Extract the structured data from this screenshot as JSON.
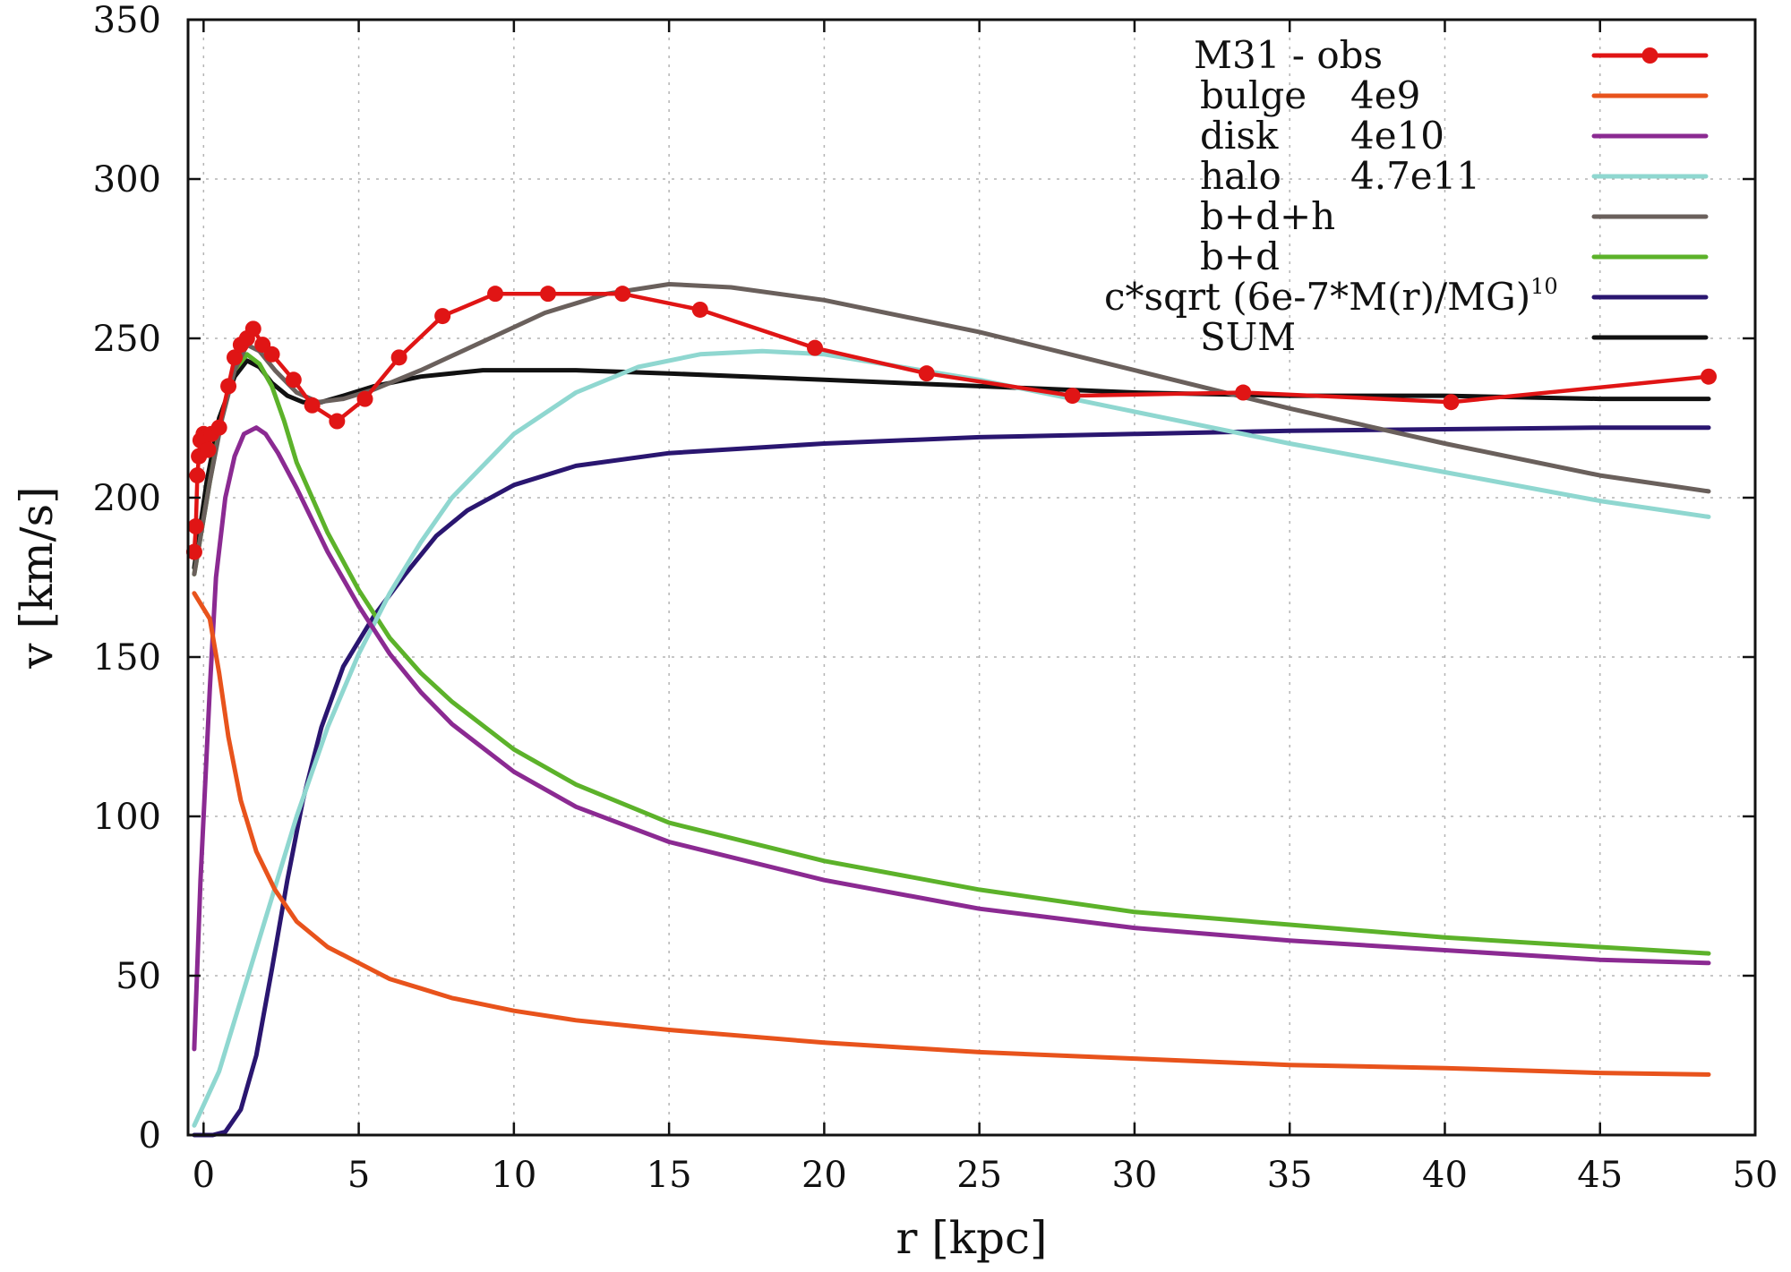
{
  "chart_data": {
    "type": "line",
    "title": "",
    "xlabel": "r [kpc]",
    "ylabel": "v [km/s]",
    "xlim": [
      -0.5,
      50
    ],
    "ylim": [
      0,
      350
    ],
    "grid": true,
    "legend_position": "top-right",
    "x_ticks": [
      0,
      5,
      10,
      15,
      20,
      25,
      30,
      35,
      40,
      45,
      50
    ],
    "x_tick_labels": [
      "0",
      "5",
      "10",
      "15",
      "20",
      "25",
      "30",
      "35",
      "40",
      "45",
      "50"
    ],
    "y_ticks": [
      0,
      50,
      100,
      150,
      200,
      250,
      300,
      350
    ],
    "y_tick_labels": [
      "0",
      "50",
      "100",
      "150",
      "200",
      "250",
      "300",
      "350"
    ],
    "series": [
      {
        "name": "M31 -   obs",
        "legend_left": "M31 -   obs",
        "legend_right": "",
        "color": "#e01515",
        "markers": true,
        "x": [
          -0.3,
          -0.25,
          -0.2,
          -0.15,
          -0.1,
          0.0,
          0.05,
          0.15,
          0.25,
          0.5,
          0.8,
          1.0,
          1.2,
          1.4,
          1.6,
          1.9,
          2.2,
          2.9,
          3.5,
          4.3,
          5.2,
          6.3,
          7.7,
          9.4,
          11.1,
          13.5,
          16.0,
          19.7,
          23.3,
          28.0,
          33.5,
          40.2,
          48.5
        ],
        "y": [
          183,
          191,
          207,
          213,
          218,
          220,
          219,
          215,
          220,
          222,
          235,
          244,
          248,
          250,
          253,
          248,
          245,
          237,
          229,
          224,
          231,
          244,
          257,
          264,
          264,
          264,
          259,
          247,
          239,
          232,
          233,
          230,
          238
        ]
      },
      {
        "name": "bulge 4e9",
        "legend_left": "bulge",
        "legend_right": "4e9",
        "color": "#e8531c",
        "markers": false,
        "x": [
          -0.3,
          0.2,
          0.5,
          0.8,
          1.2,
          1.7,
          2.3,
          3,
          4,
          5,
          6,
          7,
          8,
          10,
          12,
          15,
          20,
          25,
          30,
          35,
          40,
          45,
          48.5
        ],
        "y": [
          170,
          162,
          145,
          125,
          105,
          89,
          77,
          67,
          59,
          54,
          49,
          46,
          43,
          39,
          36,
          33,
          29,
          26,
          24,
          22,
          21,
          19.5,
          19
        ]
      },
      {
        "name": "disk 4e10",
        "legend_left": "disk",
        "legend_right": "4e10",
        "color": "#8b2a92",
        "markers": false,
        "x": [
          -0.3,
          -0.1,
          0.2,
          0.4,
          0.7,
          1.0,
          1.3,
          1.7,
          2.0,
          2.4,
          3,
          4,
          5,
          6,
          7,
          8,
          10,
          12,
          15,
          20,
          25,
          30,
          35,
          40,
          45,
          48.5
        ],
        "y": [
          27,
          80,
          140,
          175,
          200,
          213,
          220,
          222,
          220,
          214,
          203,
          183,
          166,
          151,
          139,
          129,
          114,
          103,
          92,
          80,
          71,
          65,
          61,
          58,
          55,
          54
        ]
      },
      {
        "name": "halo 4.7e11",
        "legend_left": "halo",
        "legend_right": "4.7e11",
        "color": "#8fd7d0",
        "markers": false,
        "x": [
          -0.3,
          0.5,
          1,
          2,
          3,
          4,
          5,
          6,
          7,
          8,
          10,
          12,
          14,
          16,
          18,
          20,
          25,
          30,
          35,
          40,
          45,
          48.5
        ],
        "y": [
          3,
          20,
          36,
          68,
          100,
          128,
          151,
          170,
          186,
          200,
          220,
          233,
          241,
          245,
          246,
          245,
          237,
          227,
          217,
          208,
          199,
          194
        ]
      },
      {
        "name": "b+d+h",
        "legend_left": "b+d+h",
        "legend_right": "",
        "color": "#6a605c",
        "markers": false,
        "x": [
          -0.3,
          0.2,
          0.6,
          1.0,
          1.4,
          1.8,
          2.3,
          3.0,
          3.7,
          4.5,
          5.5,
          7,
          9,
          11,
          13,
          15,
          17,
          20,
          25,
          30,
          35,
          40,
          45,
          48.5
        ],
        "y": [
          176,
          205,
          225,
          240,
          248,
          246,
          240,
          233,
          230,
          231,
          234,
          240,
          249,
          258,
          264,
          267,
          266,
          262,
          252,
          240,
          228,
          217,
          207,
          202
        ]
      },
      {
        "name": "b+d",
        "legend_left": "b+d",
        "legend_right": "",
        "color": "#5cb22a",
        "markers": false,
        "x": [
          -0.3,
          0.2,
          0.6,
          1.0,
          1.4,
          1.8,
          2.2,
          2.6,
          3,
          4,
          5,
          6,
          7,
          8,
          10,
          12,
          15,
          20,
          25,
          30,
          35,
          40,
          45,
          48.5
        ],
        "y": [
          176,
          205,
          226,
          240,
          245,
          242,
          235,
          224,
          211,
          189,
          171,
          156,
          145,
          136,
          121,
          110,
          98,
          86,
          77,
          70,
          66,
          62,
          59,
          57
        ]
      },
      {
        "name": "c*sqrt (6e-7*M(r)/MG)^10",
        "legend_left": "c*sqrt (6e-7*M(r)/MG)",
        "legend_sup": "10",
        "legend_right": "",
        "color": "#2a1670",
        "markers": false,
        "x": [
          -0.3,
          0.3,
          0.7,
          1.2,
          1.7,
          2.2,
          2.7,
          3.2,
          3.8,
          4.5,
          5.5,
          6.5,
          7.5,
          8.5,
          10,
          12,
          15,
          20,
          25,
          30,
          35,
          40,
          45,
          48.5
        ],
        "y": [
          0,
          0,
          1,
          8,
          25,
          52,
          80,
          105,
          128,
          147,
          163,
          176,
          188,
          196,
          204,
          210,
          214,
          217,
          219,
          220,
          221,
          221.5,
          222,
          222
        ]
      },
      {
        "name": "SUM",
        "legend_left": "SUM",
        "legend_right": "",
        "color": "#111111",
        "markers": false,
        "x": [
          -0.3,
          0.1,
          0.5,
          1.0,
          1.4,
          1.8,
          2.2,
          2.7,
          3.2,
          3.8,
          4.5,
          5.5,
          7,
          9,
          12,
          15,
          20,
          25,
          30,
          35,
          40,
          45,
          48.5
        ],
        "y": [
          178,
          205,
          225,
          238,
          243,
          241,
          236,
          232,
          230,
          230,
          232,
          235,
          238,
          240,
          240,
          239,
          237,
          235,
          233,
          232,
          232,
          231,
          231
        ]
      }
    ]
  }
}
